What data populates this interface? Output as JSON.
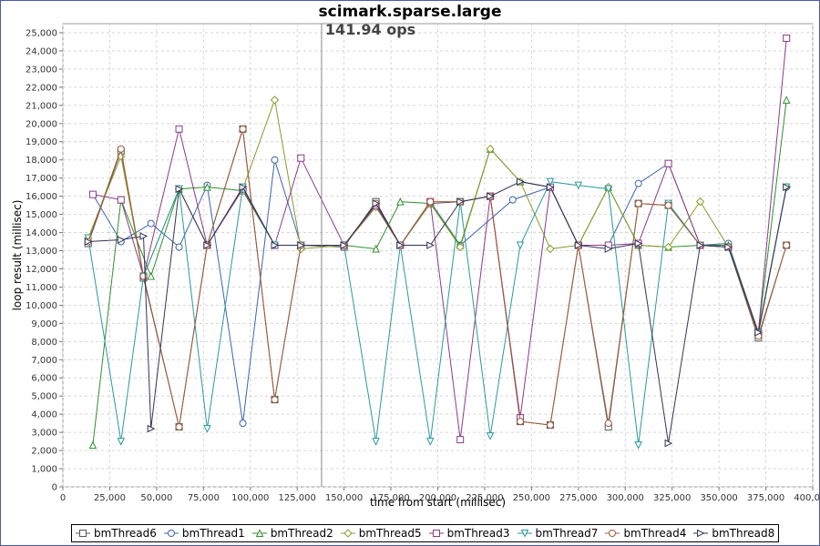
{
  "chart_data": {
    "type": "line",
    "title": "scimark.sparse.large",
    "marker_label": "141.94 ops",
    "marker_x": 138000,
    "xlabel": "time from start (millisec)",
    "ylabel": "loop result (millisec)",
    "xlim": [
      0,
      400000
    ],
    "ylim": [
      0,
      25500
    ],
    "x_ticks": [
      0,
      25000,
      50000,
      75000,
      100000,
      125000,
      150000,
      175000,
      200000,
      225000,
      250000,
      275000,
      300000,
      325000,
      350000,
      375000,
      400000
    ],
    "x_tick_labels": [
      "0",
      "25,000",
      "50,000",
      "75,000",
      "100,000",
      "125,000",
      "150,000",
      "175,000",
      "200,000",
      "225,000",
      "250,000",
      "275,000",
      "300,000",
      "325,000",
      "350,000",
      "375,000",
      "400,000"
    ],
    "y_ticks": [
      0,
      1000,
      2000,
      3000,
      4000,
      5000,
      6000,
      7000,
      8000,
      9000,
      10000,
      11000,
      12000,
      13000,
      14000,
      15000,
      16000,
      17000,
      18000,
      19000,
      20000,
      21000,
      22000,
      23000,
      24000,
      25000
    ],
    "y_tick_labels": [
      "0",
      "1,000",
      "2,000",
      "3,000",
      "4,000",
      "5,000",
      "6,000",
      "7,000",
      "8,000",
      "9,000",
      "10,000",
      "11,000",
      "12,000",
      "13,000",
      "14,000",
      "15,000",
      "16,000",
      "17,000",
      "18,000",
      "19,000",
      "20,000",
      "21,000",
      "22,000",
      "23,000",
      "24,000",
      "25,000"
    ],
    "grid": true,
    "legend_position": "bottom",
    "series": [
      {
        "name": "bmThread6",
        "color": "#555555",
        "marker": "square",
        "points": [
          [
            13500,
            13400
          ],
          [
            31000,
            18500
          ],
          [
            43000,
            11500
          ],
          [
            62000,
            3300
          ],
          [
            77000,
            13300
          ],
          [
            96000,
            19700
          ],
          [
            113000,
            4800
          ],
          [
            127000,
            13300
          ],
          [
            150000,
            13200
          ],
          [
            167000,
            15700
          ],
          [
            180000,
            13300
          ],
          [
            196000,
            15600
          ],
          [
            212000,
            15700
          ],
          [
            228000,
            16000
          ],
          [
            244000,
            3600
          ],
          [
            260000,
            3400
          ],
          [
            275000,
            13300
          ],
          [
            291000,
            3300
          ],
          [
            307000,
            15600
          ],
          [
            323000,
            15500
          ],
          [
            340000,
            13300
          ],
          [
            355000,
            13200
          ],
          [
            371000,
            8200
          ],
          [
            386000,
            13300
          ]
        ]
      },
      {
        "name": "bmThread1",
        "color": "#3b64b4",
        "marker": "circle",
        "points": [
          [
            16000,
            16100
          ],
          [
            31000,
            13500
          ],
          [
            47000,
            14500
          ],
          [
            62000,
            13200
          ],
          [
            77000,
            16600
          ],
          [
            96000,
            3500
          ],
          [
            113000,
            18000
          ],
          [
            127000,
            13300
          ],
          [
            150000,
            13300
          ],
          [
            167000,
            15500
          ],
          [
            180000,
            13300
          ],
          [
            196000,
            15700
          ],
          [
            212000,
            13300
          ],
          [
            240000,
            15800
          ],
          [
            260000,
            16500
          ],
          [
            275000,
            13300
          ],
          [
            291000,
            13300
          ],
          [
            307000,
            16700
          ],
          [
            323000,
            17800
          ],
          [
            340000,
            13300
          ],
          [
            355000,
            13400
          ],
          [
            371000,
            8500
          ],
          [
            386000,
            16500
          ]
        ]
      },
      {
        "name": "bmThread2",
        "color": "#2f8f2f",
        "marker": "triangle-up",
        "points": [
          [
            16000,
            2300
          ],
          [
            31000,
            15800
          ],
          [
            47000,
            11600
          ],
          [
            62000,
            16400
          ],
          [
            77000,
            16500
          ],
          [
            96000,
            16300
          ],
          [
            113000,
            13300
          ],
          [
            127000,
            13300
          ],
          [
            150000,
            13300
          ],
          [
            167000,
            13100
          ],
          [
            180000,
            15700
          ],
          [
            196000,
            15600
          ],
          [
            212000,
            13300
          ],
          [
            228000,
            18600
          ],
          [
            244000,
            16800
          ],
          [
            260000,
            16500
          ],
          [
            275000,
            13300
          ],
          [
            291000,
            16500
          ],
          [
            307000,
            13300
          ],
          [
            323000,
            13200
          ],
          [
            340000,
            13300
          ],
          [
            355000,
            13300
          ],
          [
            371000,
            8500
          ],
          [
            386000,
            21300
          ]
        ]
      },
      {
        "name": "bmThread5",
        "color": "#8a9a2c",
        "marker": "diamond",
        "points": [
          [
            13500,
            13700
          ],
          [
            31000,
            18200
          ],
          [
            43000,
            11600
          ],
          [
            62000,
            16400
          ],
          [
            77000,
            13300
          ],
          [
            96000,
            16400
          ],
          [
            113000,
            21300
          ],
          [
            127000,
            13100
          ],
          [
            150000,
            13300
          ],
          [
            167000,
            15400
          ],
          [
            180000,
            13300
          ],
          [
            196000,
            15600
          ],
          [
            212000,
            13200
          ],
          [
            228000,
            18600
          ],
          [
            244000,
            16800
          ],
          [
            260000,
            13100
          ],
          [
            275000,
            13300
          ],
          [
            291000,
            16500
          ],
          [
            307000,
            13300
          ],
          [
            323000,
            13200
          ],
          [
            340000,
            15700
          ],
          [
            355000,
            13200
          ],
          [
            371000,
            8400
          ],
          [
            386000,
            16500
          ]
        ]
      },
      {
        "name": "bmThread3",
        "color": "#8a3a8a",
        "marker": "square",
        "points": [
          [
            16000,
            16100
          ],
          [
            31000,
            15800
          ],
          [
            43000,
            11600
          ],
          [
            62000,
            19700
          ],
          [
            77000,
            13300
          ],
          [
            96000,
            16400
          ],
          [
            113000,
            13300
          ],
          [
            127000,
            18100
          ],
          [
            150000,
            13300
          ],
          [
            167000,
            15500
          ],
          [
            180000,
            13300
          ],
          [
            196000,
            15700
          ],
          [
            212000,
            2600
          ],
          [
            228000,
            16000
          ],
          [
            244000,
            3800
          ],
          [
            260000,
            16500
          ],
          [
            275000,
            13300
          ],
          [
            291000,
            13300
          ],
          [
            307000,
            13400
          ],
          [
            323000,
            17800
          ],
          [
            340000,
            13300
          ],
          [
            355000,
            13200
          ],
          [
            371000,
            8500
          ],
          [
            386000,
            24700
          ]
        ]
      },
      {
        "name": "bmThread7",
        "color": "#2a9a9a",
        "marker": "triangle-down",
        "points": [
          [
            13500,
            13700
          ],
          [
            31000,
            2500
          ],
          [
            43000,
            11600
          ],
          [
            62000,
            16400
          ],
          [
            77000,
            3200
          ],
          [
            96000,
            16500
          ],
          [
            113000,
            13300
          ],
          [
            127000,
            13300
          ],
          [
            150000,
            13300
          ],
          [
            167000,
            2500
          ],
          [
            180000,
            13300
          ],
          [
            196000,
            2500
          ],
          [
            212000,
            15700
          ],
          [
            228000,
            2800
          ],
          [
            244000,
            13300
          ],
          [
            260000,
            16800
          ],
          [
            275000,
            16600
          ],
          [
            291000,
            16400
          ],
          [
            307000,
            2300
          ],
          [
            323000,
            15600
          ],
          [
            340000,
            13300
          ],
          [
            355000,
            13200
          ],
          [
            371000,
            8500
          ],
          [
            386000,
            16500
          ]
        ]
      },
      {
        "name": "bmThread4",
        "color": "#a05a3a",
        "marker": "circle",
        "points": [
          [
            13500,
            13500
          ],
          [
            31000,
            18600
          ],
          [
            43000,
            11600
          ],
          [
            62000,
            3300
          ],
          [
            77000,
            13300
          ],
          [
            96000,
            19700
          ],
          [
            113000,
            4800
          ],
          [
            127000,
            13300
          ],
          [
            150000,
            13300
          ],
          [
            167000,
            15600
          ],
          [
            180000,
            13300
          ],
          [
            196000,
            15700
          ],
          [
            212000,
            15700
          ],
          [
            228000,
            16000
          ],
          [
            244000,
            3600
          ],
          [
            260000,
            3400
          ],
          [
            275000,
            13300
          ],
          [
            291000,
            3500
          ],
          [
            307000,
            15600
          ],
          [
            323000,
            15500
          ],
          [
            340000,
            13300
          ],
          [
            355000,
            13200
          ],
          [
            371000,
            8300
          ],
          [
            386000,
            13300
          ]
        ]
      },
      {
        "name": "bmThread8",
        "color": "#333355",
        "marker": "triangle-right",
        "points": [
          [
            13500,
            13500
          ],
          [
            31000,
            13600
          ],
          [
            43000,
            13800
          ],
          [
            47000,
            3200
          ],
          [
            62000,
            16400
          ],
          [
            77000,
            13300
          ],
          [
            96000,
            16500
          ],
          [
            113000,
            13300
          ],
          [
            127000,
            13300
          ],
          [
            150000,
            13300
          ],
          [
            167000,
            15600
          ],
          [
            180000,
            13300
          ],
          [
            196000,
            13300
          ],
          [
            212000,
            15700
          ],
          [
            228000,
            16000
          ],
          [
            244000,
            16800
          ],
          [
            260000,
            16500
          ],
          [
            275000,
            13300
          ],
          [
            291000,
            13100
          ],
          [
            307000,
            13400
          ],
          [
            323000,
            2400
          ],
          [
            340000,
            13300
          ],
          [
            355000,
            13200
          ],
          [
            371000,
            8500
          ],
          [
            386000,
            16500
          ]
        ]
      }
    ]
  }
}
